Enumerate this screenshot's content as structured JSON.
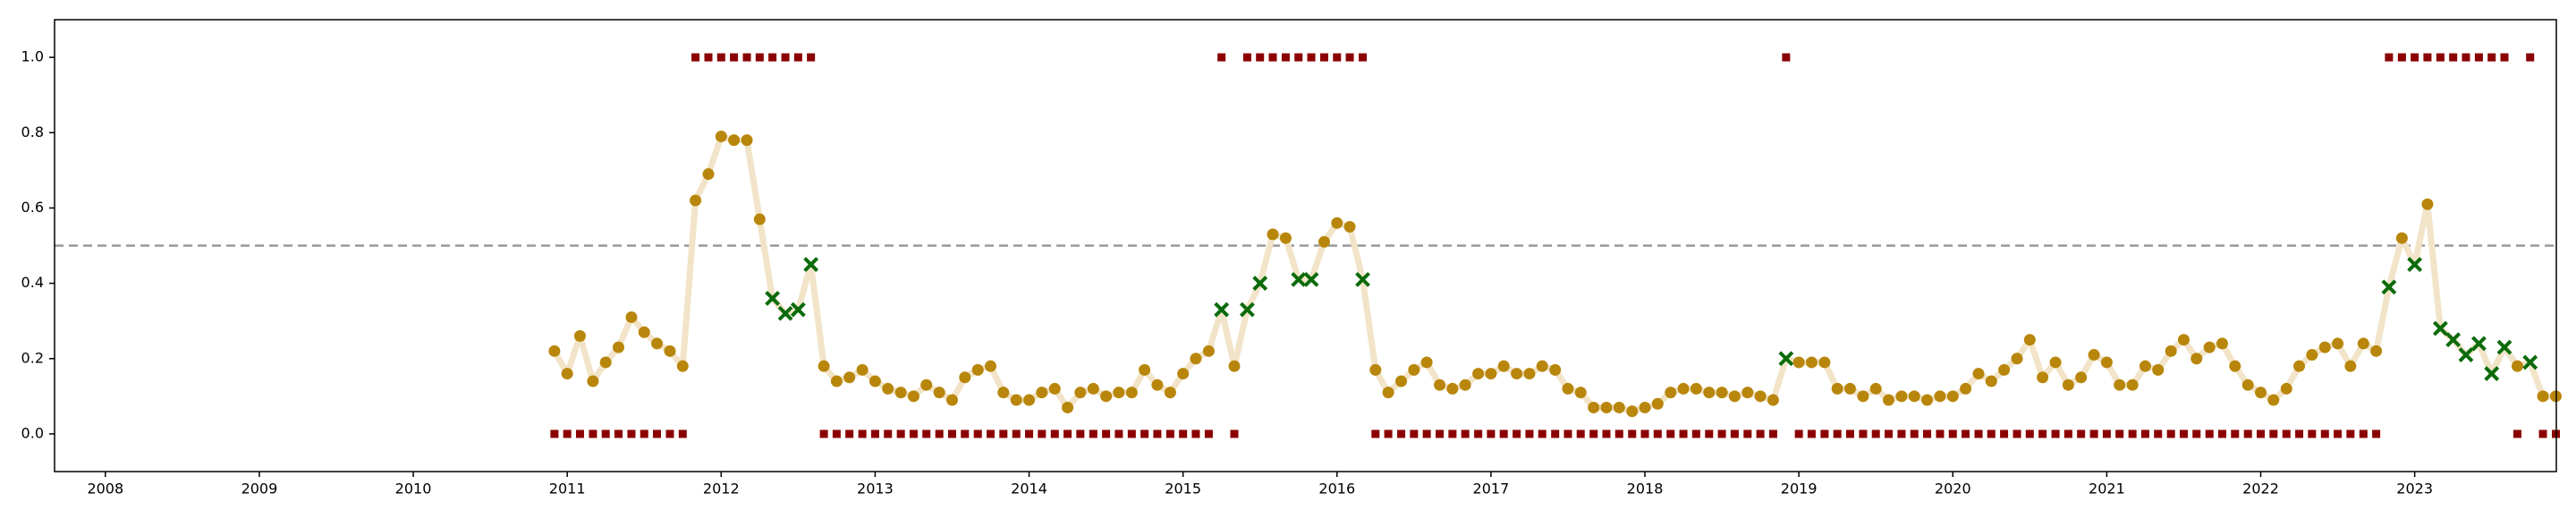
{
  "chart_data": {
    "type": "line",
    "x": [
      2010.917,
      2011,
      2011.083,
      2011.167,
      2011.25,
      2011.333,
      2011.417,
      2011.5,
      2011.583,
      2011.667,
      2011.75,
      2011.833,
      2011.917,
      2012,
      2012.083,
      2012.167,
      2012.25,
      2012.333,
      2012.417,
      2012.5,
      2012.583,
      2012.667,
      2012.75,
      2012.833,
      2012.917,
      2013,
      2013.083,
      2013.167,
      2013.25,
      2013.333,
      2013.417,
      2013.5,
      2013.583,
      2013.667,
      2013.75,
      2013.833,
      2013.917,
      2014,
      2014.083,
      2014.167,
      2014.25,
      2014.333,
      2014.417,
      2014.5,
      2014.583,
      2014.667,
      2014.75,
      2014.833,
      2014.917,
      2015,
      2015.083,
      2015.167,
      2015.25,
      2015.333,
      2015.417,
      2015.5,
      2015.583,
      2015.667,
      2015.75,
      2015.833,
      2015.917,
      2016,
      2016.083,
      2016.167,
      2016.25,
      2016.333,
      2016.417,
      2016.5,
      2016.583,
      2016.667,
      2016.75,
      2016.833,
      2016.917,
      2017,
      2017.083,
      2017.167,
      2017.25,
      2017.333,
      2017.417,
      2017.5,
      2017.583,
      2017.667,
      2017.75,
      2017.833,
      2017.917,
      2018,
      2018.083,
      2018.167,
      2018.25,
      2018.333,
      2018.417,
      2018.5,
      2018.583,
      2018.667,
      2018.75,
      2018.833,
      2018.917,
      2019,
      2019.083,
      2019.167,
      2019.25,
      2019.333,
      2019.417,
      2019.5,
      2019.583,
      2019.667,
      2019.75,
      2019.833,
      2019.917,
      2020,
      2020.083,
      2020.167,
      2020.25,
      2020.333,
      2020.417,
      2020.5,
      2020.583,
      2020.667,
      2020.75,
      2020.833,
      2020.917,
      2021,
      2021.083,
      2021.167,
      2021.25,
      2021.333,
      2021.417,
      2021.5,
      2021.583,
      2021.667,
      2021.75,
      2021.833,
      2021.917,
      2022,
      2022.083,
      2022.167,
      2022.25,
      2022.333,
      2022.417,
      2022.5,
      2022.583,
      2022.667,
      2022.75,
      2022.833,
      2022.917,
      2023,
      2023.083,
      2023.167,
      2023.25,
      2023.333,
      2023.417,
      2023.5,
      2023.583,
      2023.667,
      2023.75,
      2023.833,
      2023.917
    ],
    "series": [
      {
        "color": "#f2e4c8",
        "marker_colors": {
          "o": "#b8860b",
          "x": "#0a6b0a"
        },
        "values": [
          0.22,
          0.16,
          0.26,
          0.14,
          0.19,
          0.23,
          0.31,
          0.27,
          0.24,
          0.22,
          0.18,
          0.62,
          0.69,
          0.79,
          0.78,
          0.78,
          0.57,
          0.36,
          0.32,
          0.33,
          0.45,
          0.18,
          0.14,
          0.15,
          0.17,
          0.14,
          0.12,
          0.11,
          0.1,
          0.13,
          0.11,
          0.09,
          0.15,
          0.17,
          0.18,
          0.11,
          0.09,
          0.09,
          0.11,
          0.12,
          0.07,
          0.11,
          0.12,
          0.1,
          0.11,
          0.11,
          0.17,
          0.13,
          0.11,
          0.16,
          0.2,
          0.22,
          0.33,
          0.18,
          0.33,
          0.4,
          0.53,
          0.52,
          0.41,
          0.41,
          0.51,
          0.56,
          0.55,
          0.41,
          0.17,
          0.11,
          0.14,
          0.17,
          0.19,
          0.13,
          0.12,
          0.13,
          0.16,
          0.16,
          0.18,
          0.16,
          0.16,
          0.18,
          0.17,
          0.12,
          0.11,
          0.07,
          0.07,
          0.07,
          0.06,
          0.07,
          0.08,
          0.11,
          0.12,
          0.12,
          0.11,
          0.11,
          0.1,
          0.11,
          0.1,
          0.09,
          0.2,
          0.19,
          0.19,
          0.19,
          0.12,
          0.12,
          0.1,
          0.12,
          0.09,
          0.1,
          0.1,
          0.09,
          0.1,
          0.1,
          0.12,
          0.16,
          0.14,
          0.17,
          0.2,
          0.25,
          0.15,
          0.19,
          0.13,
          0.15,
          0.21,
          0.19,
          0.13,
          0.13,
          0.18,
          0.17,
          0.22,
          0.25,
          0.2,
          0.23,
          0.24,
          0.18,
          0.13,
          0.11,
          0.09,
          0.12,
          0.18,
          0.21,
          0.23,
          0.24,
          0.18,
          0.24,
          0.22,
          0.39,
          0.52,
          0.45,
          0.61,
          0.28,
          0.25,
          0.21,
          0.24,
          0.16,
          0.23,
          0.18,
          0.19,
          0.1,
          0.1
        ],
        "markers": [
          "o",
          "o",
          "o",
          "o",
          "o",
          "o",
          "o",
          "o",
          "o",
          "o",
          "o",
          "o",
          "o",
          "o",
          "o",
          "o",
          "o",
          "x",
          "x",
          "x",
          "x",
          "o",
          "o",
          "o",
          "o",
          "o",
          "o",
          "o",
          "o",
          "o",
          "o",
          "o",
          "o",
          "o",
          "o",
          "o",
          "o",
          "o",
          "o",
          "o",
          "o",
          "o",
          "o",
          "o",
          "o",
          "o",
          "o",
          "o",
          "o",
          "o",
          "o",
          "o",
          "x",
          "o",
          "x",
          "x",
          "o",
          "o",
          "x",
          "x",
          "o",
          "o",
          "o",
          "x",
          "o",
          "o",
          "o",
          "o",
          "o",
          "o",
          "o",
          "o",
          "o",
          "o",
          "o",
          "o",
          "o",
          "o",
          "o",
          "o",
          "o",
          "o",
          "o",
          "o",
          "o",
          "o",
          "o",
          "o",
          "o",
          "o",
          "o",
          "o",
          "o",
          "o",
          "o",
          "o",
          "x",
          "o",
          "o",
          "o",
          "o",
          "o",
          "o",
          "o",
          "o",
          "o",
          "o",
          "o",
          "o",
          "o",
          "o",
          "o",
          "o",
          "o",
          "o",
          "o",
          "o",
          "o",
          "o",
          "o",
          "o",
          "o",
          "o",
          "o",
          "o",
          "o",
          "o",
          "o",
          "o",
          "o",
          "o",
          "o",
          "o",
          "o",
          "o",
          "o",
          "o",
          "o",
          "o",
          "o",
          "o",
          "o",
          "o",
          "x",
          "o",
          "x",
          "o",
          "x",
          "x",
          "x",
          "x",
          "x",
          "x",
          "o",
          "x",
          "o",
          "o"
        ]
      },
      {
        "color": "#8b0000",
        "marker": "square",
        "values": [
          0,
          0,
          0,
          0,
          0,
          0,
          0,
          0,
          0,
          0,
          0,
          1,
          1,
          1,
          1,
          1,
          1,
          1,
          1,
          1,
          1,
          0,
          0,
          0,
          0,
          0,
          0,
          0,
          0,
          0,
          0,
          0,
          0,
          0,
          0,
          0,
          0,
          0,
          0,
          0,
          0,
          0,
          0,
          0,
          0,
          0,
          0,
          0,
          0,
          0,
          0,
          0,
          1,
          0,
          1,
          1,
          1,
          1,
          1,
          1,
          1,
          1,
          1,
          1,
          0,
          0,
          0,
          0,
          0,
          0,
          0,
          0,
          0,
          0,
          0,
          0,
          0,
          0,
          0,
          0,
          0,
          0,
          0,
          0,
          0,
          0,
          0,
          0,
          0,
          0,
          0,
          0,
          0,
          0,
          0,
          0,
          1,
          0,
          0,
          0,
          0,
          0,
          0,
          0,
          0,
          0,
          0,
          0,
          0,
          0,
          0,
          0,
          0,
          0,
          0,
          0,
          0,
          0,
          0,
          0,
          0,
          0,
          0,
          0,
          0,
          0,
          0,
          0,
          0,
          0,
          0,
          0,
          0,
          0,
          0,
          0,
          0,
          0,
          0,
          0,
          0,
          0,
          0,
          1,
          1,
          1,
          1,
          1,
          1,
          1,
          1,
          1,
          1,
          0,
          1,
          0,
          0
        ]
      }
    ],
    "hline": {
      "value": 0.5,
      "color": "#999999",
      "dashed": true
    },
    "xlim": [
      2007.67,
      2023.92
    ],
    "ylim": [
      -0.1,
      1.1
    ],
    "xticks": [
      2008,
      2009,
      2010,
      2011,
      2012,
      2013,
      2014,
      2015,
      2016,
      2017,
      2018,
      2019,
      2020,
      2021,
      2022,
      2023
    ],
    "yticks": [
      {
        "value": 0,
        "label": "0.0"
      },
      0.2,
      0.4,
      0.6,
      0.8,
      {
        "value": 1,
        "label": "1.0"
      }
    ],
    "grid": false
  }
}
